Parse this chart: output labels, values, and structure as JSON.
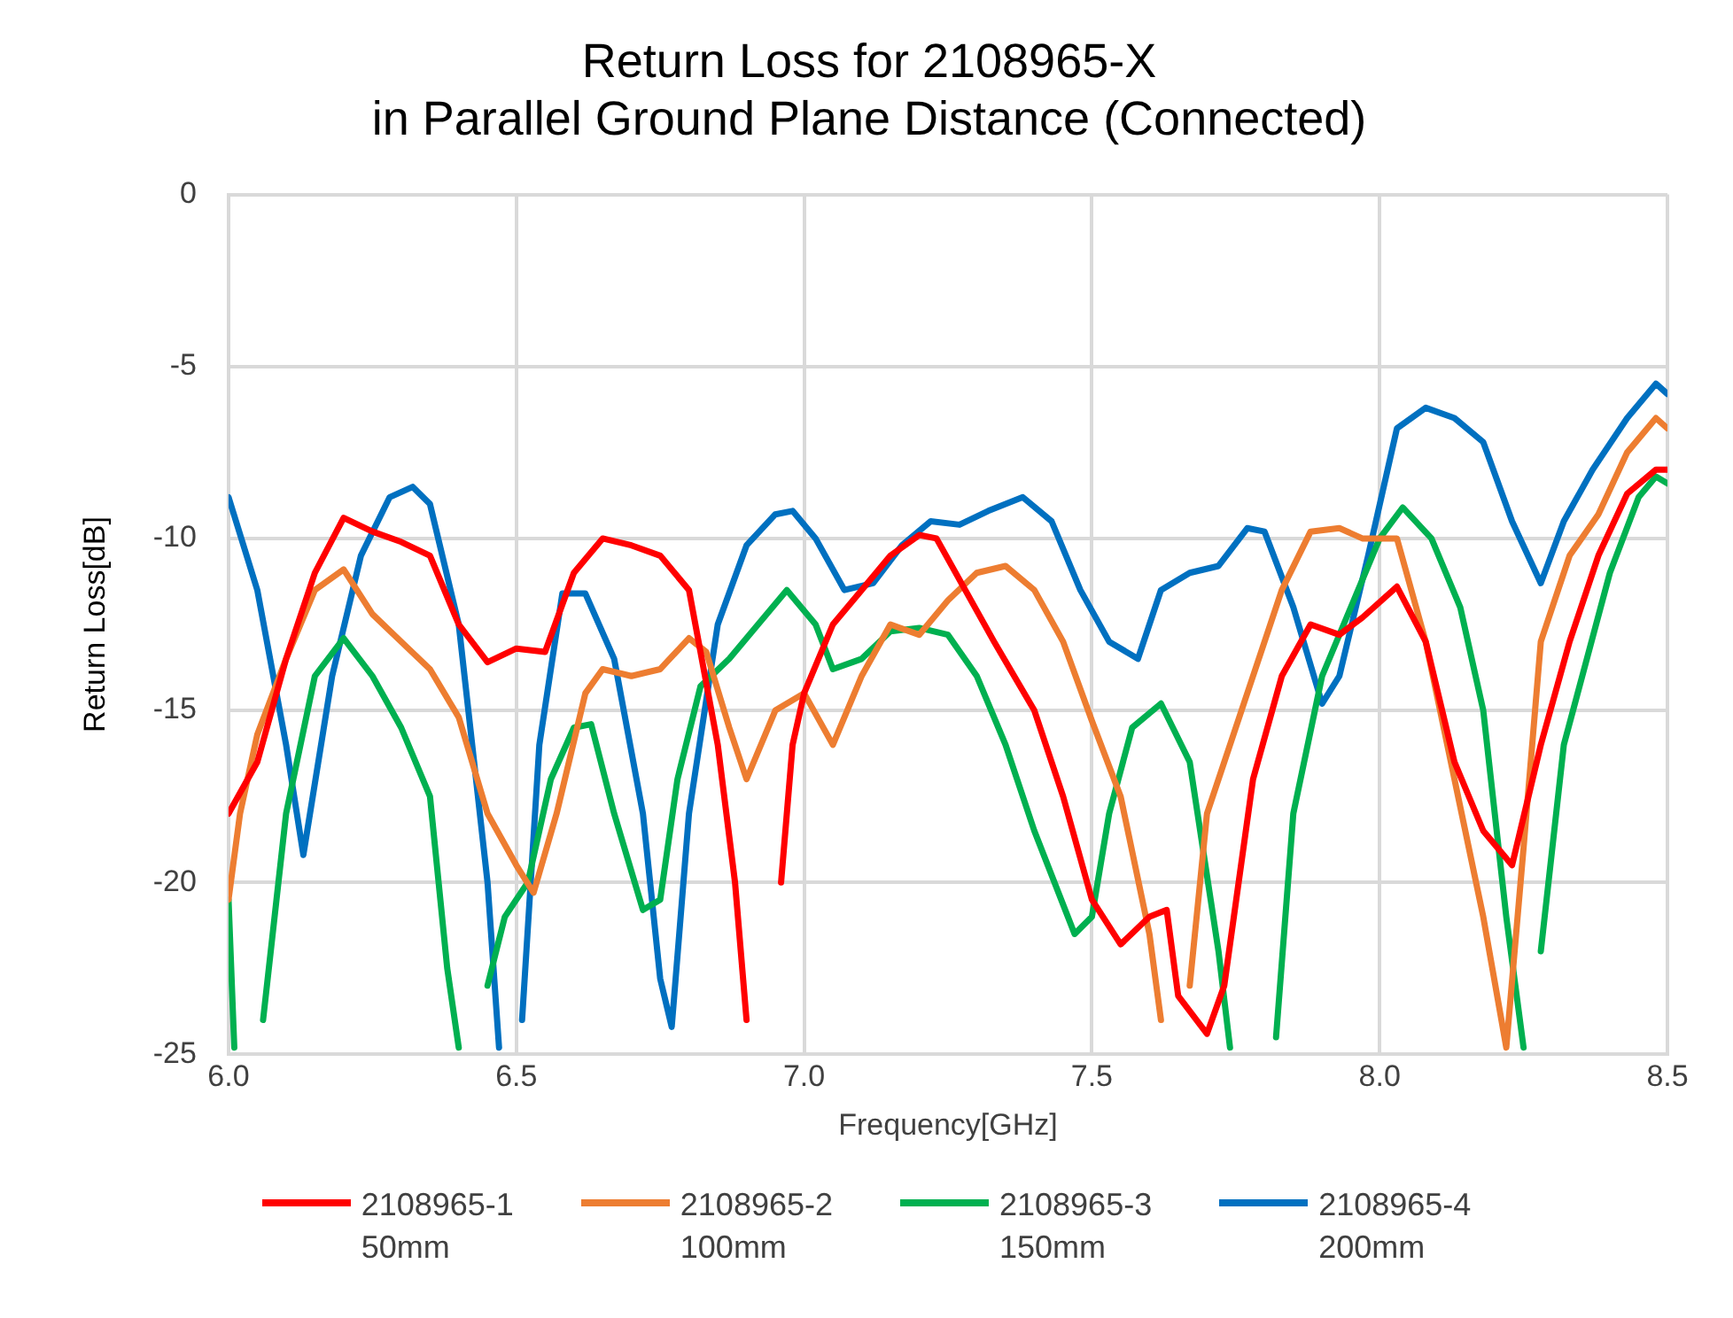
{
  "chart_data": {
    "type": "line",
    "title": "Return Loss for 2108965-X\nin Parallel Ground Plane Distance (Connected)",
    "xlabel": "Frequency[GHz]",
    "ylabel": "Return Loss[dB]",
    "xlim": [
      6,
      8.5
    ],
    "xticks": [
      {
        "value": 6,
        "label": "6.0"
      },
      {
        "value": 6.5,
        "label": "6.5"
      },
      {
        "value": 7,
        "label": "7.0"
      },
      {
        "value": 7.5,
        "label": "7.5"
      },
      {
        "value": 8,
        "label": "8.0"
      },
      {
        "value": 8.5,
        "label": "8.5"
      }
    ],
    "ylim": [
      -25,
      0
    ],
    "yticks": [
      -25,
      -20,
      -15,
      -10,
      -5,
      0
    ],
    "grid": true,
    "legend": "bottom",
    "marker": "none",
    "line_style": "solid",
    "series": [
      {
        "name": "2108965-1\n50mm",
        "color": "#ff0000",
        "x": [
          6.0,
          6.05,
          6.1,
          6.15,
          6.2,
          6.25,
          6.3,
          6.35,
          6.4,
          6.45,
          6.5,
          6.55,
          6.6,
          6.65,
          6.7,
          6.75,
          6.8,
          6.85,
          6.88,
          6.9,
          6.93,
          6.96,
          6.98,
          7.0,
          7.05,
          7.1,
          7.15,
          7.2,
          7.23,
          7.28,
          7.33,
          7.4,
          7.45,
          7.5,
          7.55,
          7.6,
          7.63,
          7.65,
          7.7,
          7.73,
          7.78,
          7.83,
          7.88,
          7.93,
          7.97,
          8.03,
          8.08,
          8.13,
          8.18,
          8.23,
          8.28,
          8.33,
          8.38,
          8.43,
          8.48,
          8.5
        ],
        "values": [
          -18,
          -16.5,
          -13.5,
          -11,
          -9.4,
          -9.8,
          -10.1,
          -10.5,
          -12.5,
          -13.6,
          -13.2,
          -13.3,
          -11,
          -10,
          -10.2,
          -10.5,
          -11.5,
          -16,
          -20,
          -24,
          null,
          -20,
          -16,
          -14.5,
          -12.5,
          -11.5,
          -10.5,
          -9.9,
          -10,
          -11.5,
          -13,
          -15,
          -17.5,
          -20.5,
          -21.8,
          -21,
          -20.8,
          -23.3,
          -24.4,
          -23,
          -17,
          -14,
          -12.5,
          -12.8,
          -12.3,
          -11.4,
          -13,
          -16.5,
          -18.5,
          -19.5,
          -16,
          -13,
          -10.5,
          -8.7,
          -8,
          -8
        ]
      },
      {
        "name": "2108965-2\n100mm",
        "color": "#ed7d31",
        "x": [
          6.0,
          6.02,
          6.05,
          6.1,
          6.15,
          6.2,
          6.25,
          6.3,
          6.35,
          6.4,
          6.45,
          6.5,
          6.53,
          6.57,
          6.62,
          6.65,
          6.7,
          6.75,
          6.8,
          6.83,
          6.87,
          6.9,
          6.95,
          7.0,
          7.05,
          7.1,
          7.15,
          7.2,
          7.25,
          7.3,
          7.35,
          7.4,
          7.45,
          7.5,
          7.55,
          7.6,
          7.62,
          7.645,
          7.67,
          7.7,
          7.73,
          7.78,
          7.83,
          7.88,
          7.93,
          7.97,
          8.03,
          8.08,
          8.13,
          8.18,
          8.22,
          8.25,
          8.28,
          8.33,
          8.38,
          8.43,
          8.48,
          8.5
        ],
        "values": [
          -20.5,
          -18,
          -15.7,
          -13.5,
          -11.5,
          -10.9,
          -12.2,
          -13,
          -13.8,
          -15.2,
          -18,
          -19.5,
          -20.3,
          -18,
          -14.5,
          -13.8,
          -14,
          -13.8,
          -12.9,
          -13.3,
          -15.5,
          -17,
          -15,
          -14.5,
          -16,
          -14,
          -12.5,
          -12.8,
          -11.8,
          -11,
          -10.8,
          -11.5,
          -13,
          -15.3,
          -17.5,
          -21.5,
          -24,
          null,
          -23,
          -18,
          -16.5,
          -14,
          -11.5,
          -9.8,
          -9.7,
          -10,
          -10,
          -13,
          -17,
          -21,
          -24.8,
          -19,
          -13,
          -10.5,
          -9.3,
          -7.5,
          -6.5,
          -6.8
        ]
      },
      {
        "name": "2108965-3\n150mm",
        "color": "#00b050",
        "x": [
          6.0,
          6.01,
          6.03,
          6.06,
          6.1,
          6.15,
          6.2,
          6.25,
          6.3,
          6.35,
          6.38,
          6.4,
          6.42,
          6.45,
          6.48,
          6.52,
          6.56,
          6.6,
          6.63,
          6.67,
          6.72,
          6.75,
          6.78,
          6.82,
          6.87,
          6.92,
          6.97,
          7.02,
          7.05,
          7.1,
          7.15,
          7.2,
          7.25,
          7.3,
          7.35,
          7.4,
          7.47,
          7.5,
          7.53,
          7.57,
          7.62,
          7.67,
          7.72,
          7.74,
          7.78,
          7.82,
          7.85,
          7.9,
          7.95,
          8.0,
          8.04,
          8.09,
          8.14,
          8.18,
          8.22,
          8.25,
          8.265,
          8.28,
          8.32,
          8.36,
          8.4,
          8.45,
          8.48,
          8.5
        ],
        "values": [
          -20.5,
          -24.8,
          null,
          -24,
          -18,
          -14,
          -12.9,
          -14,
          -15.5,
          -17.5,
          -22.5,
          -24.8,
          null,
          -23,
          -21,
          -20,
          -17,
          -15.5,
          -15.4,
          -18,
          -20.8,
          -20.5,
          -17,
          -14.3,
          -13.5,
          -12.5,
          -11.5,
          -12.5,
          -13.8,
          -13.5,
          -12.7,
          -12.6,
          -12.8,
          -14,
          -16,
          -18.5,
          -21.5,
          -21,
          -18,
          -15.5,
          -14.8,
          -16.5,
          -22,
          -24.8,
          null,
          -24.5,
          -18,
          -14,
          -12,
          -10,
          -9.1,
          -10,
          -12,
          -15,
          -21,
          -24.8,
          null,
          -22,
          -16,
          -13.5,
          -11,
          -8.8,
          -8.2,
          -8.4
        ]
      },
      {
        "name": "2108965-4\n200mm",
        "color": "#0070c0",
        "x": [
          6.0,
          6.05,
          6.1,
          6.13,
          6.18,
          6.23,
          6.28,
          6.32,
          6.35,
          6.4,
          6.45,
          6.47,
          6.49,
          6.51,
          6.54,
          6.58,
          6.62,
          6.67,
          6.72,
          6.75,
          6.77,
          6.8,
          6.85,
          6.9,
          6.95,
          6.98,
          7.02,
          7.07,
          7.12,
          7.17,
          7.22,
          7.27,
          7.32,
          7.38,
          7.43,
          7.48,
          7.53,
          7.58,
          7.62,
          7.67,
          7.72,
          7.77,
          7.8,
          7.85,
          7.9,
          7.93,
          7.98,
          8.03,
          8.08,
          8.13,
          8.18,
          8.23,
          8.28,
          8.32,
          8.37,
          8.43,
          8.48,
          8.5
        ],
        "values": [
          -8.8,
          -11.5,
          -16,
          -19.2,
          -14,
          -10.5,
          -8.8,
          -8.5,
          -9,
          -12.5,
          -20,
          -24.8,
          null,
          -24,
          -16,
          -11.6,
          -11.6,
          -13.5,
          -18,
          -22.8,
          -24.2,
          -18,
          -12.5,
          -10.2,
          -9.3,
          -9.2,
          -10,
          -11.5,
          -11.3,
          -10.2,
          -9.5,
          -9.6,
          -9.2,
          -8.8,
          -9.5,
          -11.5,
          -13,
          -13.5,
          -11.5,
          -11,
          -10.8,
          -9.7,
          -9.8,
          -12,
          -14.8,
          -14,
          -10.5,
          -6.8,
          -6.2,
          -6.5,
          -7.2,
          -9.5,
          -11.3,
          -9.5,
          -8,
          -6.5,
          -5.5,
          -5.8
        ]
      }
    ]
  }
}
